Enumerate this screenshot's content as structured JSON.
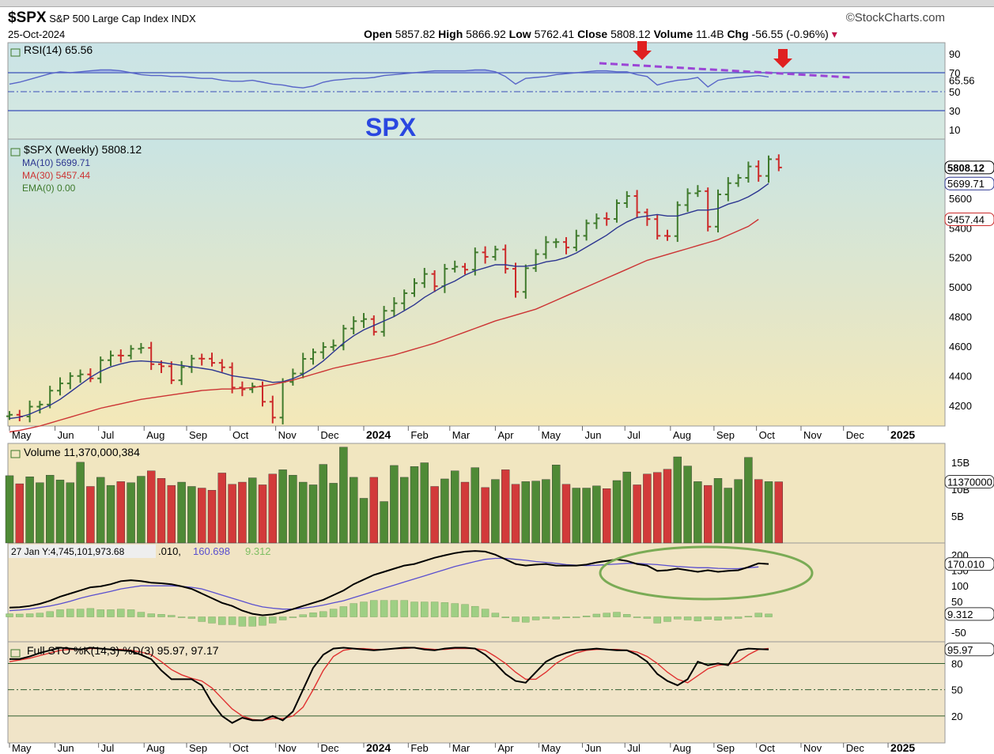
{
  "header": {
    "symbol": "$SPX",
    "name": "S&P 500 Large Cap Index",
    "exchange": "INDX",
    "date": "25-Oct-2024",
    "brand": "©StockCharts.com",
    "open_label": "Open",
    "open": "5857.82",
    "high_label": "High",
    "high": "5866.92",
    "low_label": "Low",
    "low": "5762.41",
    "close_label": "Close",
    "close": "5808.12",
    "volume_label": "Volume",
    "volume": "11.4B",
    "chg_label": "Chg",
    "chg": "-56.55 (-0.96%)",
    "annotation_title": "SPX"
  },
  "colors": {
    "up": "#3f7a2c",
    "down": "#cc2a2a",
    "ma10": "#2c3590",
    "ma30": "#cc3333",
    "rsi": "#5865c8",
    "annotation": "#9b45d6",
    "arrow": "#e02020",
    "circle": "#7aab55",
    "sto_k": "#000000",
    "sto_d": "#e03030",
    "macd": "#000000",
    "signal": "#5a4fcf",
    "hist": "#9fcf84"
  },
  "x_axis": {
    "labels": [
      "May",
      "Jun",
      "Jul",
      "Aug",
      "Sep",
      "Oct",
      "Nov",
      "Dec",
      "2024",
      "Feb",
      "Mar",
      "Apr",
      "May",
      "Jun",
      "Jul",
      "Aug",
      "Sep",
      "Oct",
      "Nov",
      "Dec",
      "2025"
    ],
    "label_weeks": [
      0,
      4.5,
      8.8,
      13.3,
      17.5,
      21.8,
      26.3,
      30.5,
      35,
      39.4,
      43.5,
      48,
      52.3,
      56.6,
      60.8,
      65.3,
      69.6,
      73.8,
      78.2,
      82.4,
      86.8
    ],
    "bold": [
      8,
      20
    ],
    "total_weeks": 93
  },
  "rsi": {
    "label": "RSI(14) 65.56",
    "value": "65.56",
    "ticks": [
      "90",
      "70",
      "50",
      "30",
      "10"
    ],
    "values": [
      58,
      60,
      63,
      66,
      69,
      71,
      70,
      71,
      72,
      73,
      73,
      72,
      70,
      68,
      67,
      67,
      66,
      66,
      65,
      64,
      64,
      62,
      61,
      61,
      62,
      60,
      58,
      57,
      55,
      54,
      56,
      60,
      62,
      63,
      64,
      64,
      65,
      67,
      68,
      69,
      70,
      71,
      72,
      72,
      72,
      72,
      73,
      73,
      71,
      66,
      58,
      64,
      65,
      66,
      68,
      69,
      70,
      71,
      72,
      72,
      71,
      71,
      68,
      66,
      57,
      60,
      62,
      63,
      65,
      55,
      62,
      64,
      65,
      66,
      67,
      65.56
    ],
    "sell_arrows": [
      "RSI peak Jul",
      "RSI peak Oct"
    ]
  },
  "price": {
    "title": "$SPX (Weekly) 5808.12",
    "legend": [
      {
        "name": "MA(10) 5699.71",
        "color": "#2c3590"
      },
      {
        "name": "MA(30) 5457.44",
        "color": "#cc3333"
      },
      {
        "name": "EMA(0) 0.00",
        "color": "#3f7a2c"
      }
    ],
    "ylim": [
      4060,
      6000
    ],
    "ticks": [
      "5600",
      "5400",
      "5200",
      "5000",
      "4800",
      "4600",
      "4400",
      "4200"
    ],
    "tags": [
      "5808.12",
      "5699.71",
      "5457.44"
    ],
    "closes": [
      4136,
      4124,
      4191,
      4205,
      4299,
      4348,
      4398,
      4409,
      4382,
      4505,
      4537,
      4536,
      4582,
      4588,
      4478,
      4464,
      4369,
      4458,
      4516,
      4515,
      4487,
      4457,
      4320,
      4308,
      4328,
      4224,
      4117,
      4358,
      4415,
      4514,
      4559,
      4594,
      4604,
      4719,
      4769,
      4783,
      4697,
      4839,
      4890,
      4958,
      5026,
      5088,
      5005,
      5123,
      5137,
      5117,
      5234,
      5204,
      5254,
      5123,
      4967,
      5127,
      5222,
      5303,
      5304,
      5267,
      5346,
      5431,
      5464,
      5460,
      5567,
      5615,
      5505,
      5459,
      5346,
      5344,
      5554,
      5634,
      5648,
      5408,
      5626,
      5702,
      5738,
      5815,
      5751,
      5864,
      5808
    ],
    "ma10": [
      4110,
      4120,
      4140,
      4170,
      4200,
      4240,
      4290,
      4340,
      4390,
      4430,
      4460,
      4480,
      4495,
      4500,
      4495,
      4490,
      4480,
      4470,
      4460,
      4450,
      4440,
      4420,
      4400,
      4390,
      4380,
      4370,
      4355,
      4360,
      4380,
      4410,
      4450,
      4500,
      4560,
      4620,
      4670,
      4710,
      4740,
      4770,
      4800,
      4840,
      4880,
      4930,
      4970,
      5010,
      5040,
      5080,
      5110,
      5130,
      5150,
      5150,
      5140,
      5140,
      5150,
      5170,
      5180,
      5200,
      5230,
      5270,
      5310,
      5350,
      5400,
      5440,
      5470,
      5480,
      5490,
      5480,
      5480,
      5500,
      5520,
      5520,
      5530,
      5560,
      5580,
      5610,
      5650,
      5699.71
    ],
    "ma30": [
      4020,
      4030,
      4045,
      4060,
      4080,
      4100,
      4120,
      4140,
      4160,
      4180,
      4195,
      4210,
      4225,
      4240,
      4250,
      4260,
      4270,
      4280,
      4290,
      4300,
      4305,
      4310,
      4310,
      4315,
      4320,
      4330,
      4340,
      4355,
      4370,
      4390,
      4410,
      4430,
      4450,
      4465,
      4480,
      4495,
      4510,
      4525,
      4540,
      4560,
      4580,
      4600,
      4620,
      4645,
      4670,
      4695,
      4720,
      4745,
      4770,
      4790,
      4810,
      4830,
      4850,
      4880,
      4910,
      4940,
      4970,
      5000,
      5030,
      5060,
      5090,
      5120,
      5150,
      5180,
      5200,
      5220,
      5240,
      5260,
      5280,
      5300,
      5320,
      5350,
      5380,
      5410,
      5457.44
    ]
  },
  "volume": {
    "label": "Volume 11,370,000,384",
    "ticks": [
      "15B",
      "10B",
      "5B"
    ],
    "tag": "11370000",
    "values_b": [
      12.5,
      11.0,
      12.3,
      11.2,
      12.6,
      11.7,
      11.2,
      15.0,
      10.5,
      12.2,
      10.7,
      11.4,
      11.2,
      12.4,
      13.4,
      12.0,
      10.7,
      11.3,
      10.5,
      10.2,
      9.8,
      13.0,
      10.9,
      11.3,
      12.1,
      10.8,
      12.8,
      13.6,
      12.6,
      11.3,
      10.8,
      14.6,
      11.1,
      17.8,
      12.2,
      8.3,
      12.2,
      7.7,
      14.4,
      12.2,
      14.2,
      14.9,
      10.5,
      11.9,
      13.4,
      11.3,
      14.0,
      10.3,
      11.8,
      13.6,
      10.9,
      11.4,
      11.5,
      11.8,
      14.5,
      10.9,
      10.2,
      10.2,
      10.6,
      10.1,
      11.6,
      13.2,
      10.8,
      12.8,
      13.1,
      13.7,
      16.0,
      14.3,
      11.4,
      10.7,
      12.0,
      10.2,
      11.8,
      15.9,
      11.8,
      11.4,
      11.37
    ]
  },
  "macd": {
    "label": "27 Jan Y:4,745,101,973.68",
    "label_rest": ".010,",
    "signal_value": "160.698",
    "hist_value": "9.312",
    "ticks": [
      "200",
      "150",
      "100",
      "50",
      "-50"
    ],
    "tags": [
      "170.010",
      "9.312"
    ],
    "macd_values": [
      30,
      31,
      35,
      42,
      52,
      65,
      75,
      85,
      95,
      98,
      105,
      115,
      118,
      115,
      110,
      108,
      105,
      98,
      90,
      75,
      60,
      45,
      35,
      20,
      10,
      5,
      8,
      15,
      25,
      35,
      45,
      55,
      70,
      85,
      105,
      120,
      135,
      145,
      155,
      165,
      170,
      180,
      190,
      198,
      205,
      210,
      212,
      210,
      200,
      185,
      170,
      165,
      168,
      170,
      165,
      165,
      165,
      168,
      175,
      180,
      185,
      180,
      170,
      165,
      148,
      150,
      155,
      150,
      145,
      150,
      145,
      148,
      150,
      160,
      172,
      170.01
    ],
    "signal_values": [
      20,
      22,
      25,
      30,
      35,
      42,
      50,
      60,
      68,
      75,
      82,
      90,
      95,
      100,
      100,
      100,
      100,
      98,
      95,
      90,
      80,
      70,
      60,
      50,
      40,
      32,
      28,
      25,
      25,
      28,
      32,
      38,
      45,
      52,
      62,
      72,
      82,
      92,
      102,
      112,
      122,
      132,
      142,
      152,
      162,
      170,
      178,
      185,
      188,
      188,
      185,
      182,
      178,
      175,
      172,
      168,
      166,
      165,
      166,
      168,
      170,
      172,
      172,
      170,
      168,
      165,
      162,
      160,
      158,
      158,
      156,
      155,
      155,
      158,
      160.698
    ],
    "hist_values": [
      10,
      9,
      10,
      12,
      17,
      23,
      25,
      25,
      27,
      23,
      23,
      25,
      23,
      15,
      10,
      8,
      5,
      0,
      -5,
      -15,
      -20,
      -25,
      -25,
      -30,
      -30,
      -27,
      -20,
      -10,
      0,
      7,
      13,
      17,
      25,
      33,
      43,
      48,
      53,
      53,
      53,
      53,
      48,
      48,
      48,
      46,
      43,
      40,
      34,
      25,
      12,
      -3,
      -15,
      -17,
      -10,
      -5,
      -7,
      -3,
      -1,
      3,
      9,
      12,
      15,
      8,
      -2,
      -5,
      -20,
      -15,
      -7,
      -10,
      -13,
      -8,
      -11,
      -7,
      -5,
      2,
      12,
      9.312
    ]
  },
  "sto": {
    "label": "Full STO %K(14,3) %D(3) 95.97, 97.17",
    "ticks": [
      "80",
      "50",
      "20"
    ],
    "tag": "95.97",
    "k_values": [
      85,
      85,
      88,
      92,
      95,
      98,
      97,
      96,
      98,
      97,
      96,
      95,
      94,
      90,
      85,
      72,
      62,
      62,
      62,
      55,
      35,
      20,
      12,
      18,
      15,
      15,
      20,
      15,
      25,
      50,
      75,
      90,
      97,
      98,
      97,
      96,
      95,
      96,
      97,
      98,
      98,
      96,
      95,
      97,
      98,
      98,
      97,
      90,
      80,
      68,
      60,
      58,
      70,
      82,
      88,
      92,
      95,
      96,
      97,
      96,
      95,
      95,
      90,
      82,
      68,
      60,
      55,
      62,
      82,
      78,
      80,
      78,
      95,
      97,
      96.5,
      95.97
    ],
    "d_values": [
      82,
      84,
      86,
      89,
      92,
      95,
      96,
      96,
      97,
      97,
      96,
      96,
      95,
      93,
      90,
      82,
      73,
      67,
      63,
      60,
      52,
      40,
      28,
      20,
      16,
      15,
      17,
      17,
      20,
      30,
      50,
      72,
      88,
      95,
      97,
      97,
      96,
      96,
      97,
      97,
      98,
      97,
      96,
      96,
      97,
      97,
      97,
      95,
      88,
      80,
      70,
      62,
      62,
      70,
      80,
      87,
      92,
      95,
      96,
      96,
      96,
      95,
      93,
      88,
      80,
      70,
      62,
      58,
      66,
      74,
      78,
      79,
      82,
      90,
      96,
      97.17
    ]
  }
}
